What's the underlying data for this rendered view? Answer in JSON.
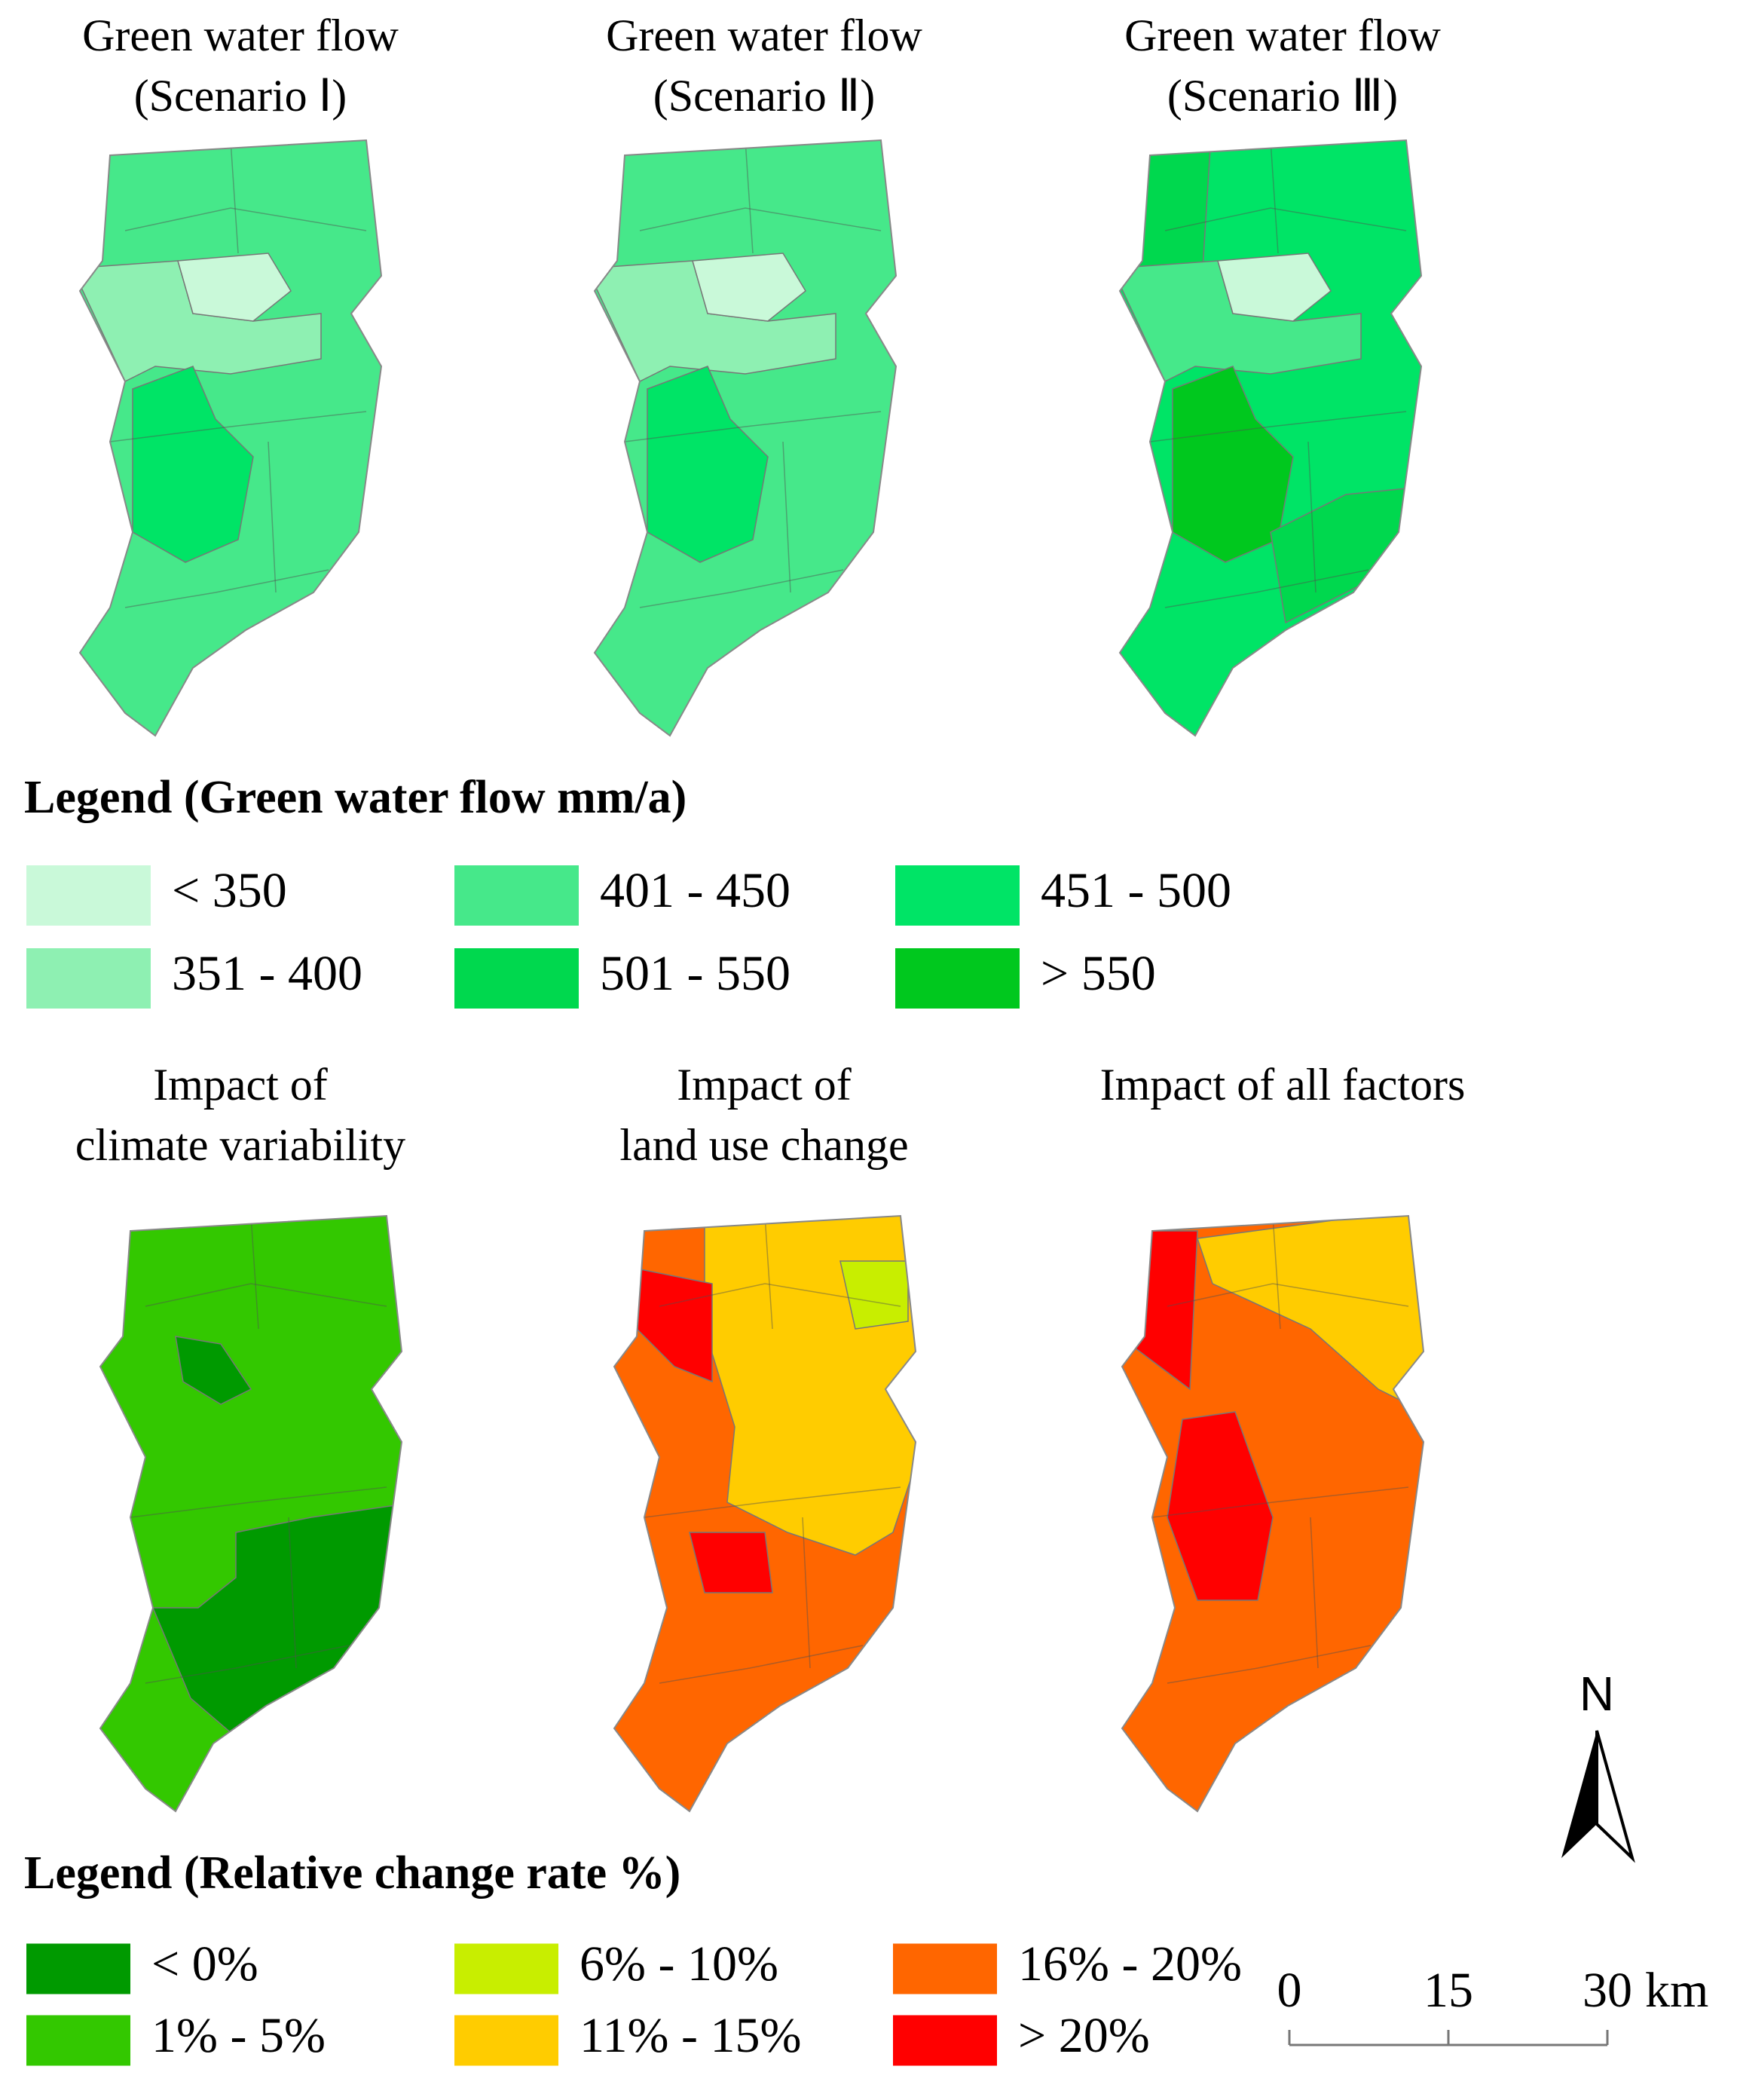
{
  "top_maps": [
    {
      "title_lines": [
        "Green water flow",
        "(Scenario Ⅰ)"
      ]
    },
    {
      "title_lines": [
        "Green water flow",
        "(Scenario Ⅱ)"
      ]
    },
    {
      "title_lines": [
        "Green water flow",
        "(Scenario Ⅲ)"
      ]
    }
  ],
  "legend_top": {
    "title": "Legend (Green water flow mm/a)",
    "items": [
      {
        "label": "< 350",
        "color": "#c9f9d9"
      },
      {
        "label": "351 - 400",
        "color": "#8ef0b2"
      },
      {
        "label": "401 - 450",
        "color": "#46e88a"
      },
      {
        "label": "501 - 550",
        "color": "#00d84e"
      },
      {
        "label": "451 - 500",
        "color": "#00e466"
      },
      {
        "label": "> 550",
        "color": "#00c81e"
      }
    ]
  },
  "bottom_maps": [
    {
      "title_lines": [
        "Impact of",
        "climate variability"
      ]
    },
    {
      "title_lines": [
        "Impact of",
        "land use change"
      ]
    },
    {
      "title_lines": [
        "Impact of all factors"
      ]
    }
  ],
  "legend_bottom": {
    "title": "Legend (Relative change rate %)",
    "items": [
      {
        "label": "< 0%",
        "color": "#009a00"
      },
      {
        "label": "1% - 5%",
        "color": "#33c800"
      },
      {
        "label": "6% - 10%",
        "color": "#c8ee00"
      },
      {
        "label": "11% - 15%",
        "color": "#ffcc00"
      },
      {
        "label": "16% - 20%",
        "color": "#ff6600"
      },
      {
        "label": "> 20%",
        "color": "#ff0000"
      }
    ]
  },
  "north": "N",
  "scale_bar": {
    "ticks": [
      0,
      15,
      30
    ],
    "unit": "km"
  }
}
